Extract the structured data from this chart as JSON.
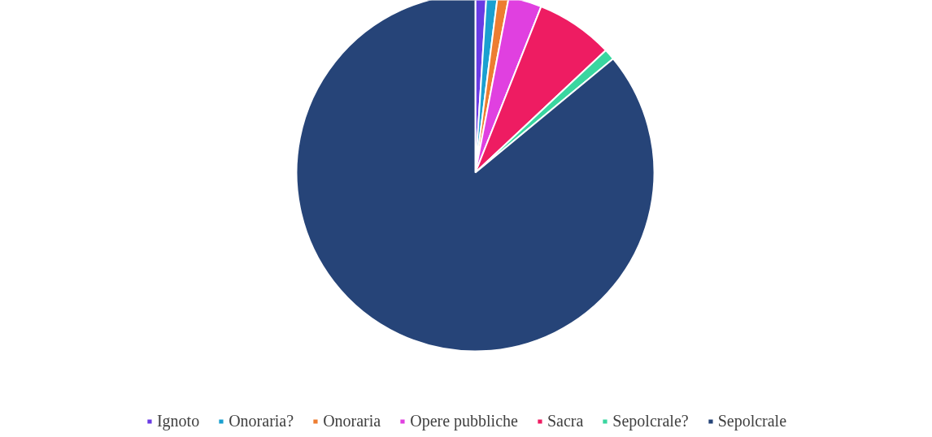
{
  "chart_data": {
    "type": "pie",
    "categories": [
      "Ignoto",
      "Onoraria?",
      "Onoraria",
      "Opere pubbliche",
      "Sacra",
      "Sepolcrale?",
      "Sepolcrale"
    ],
    "values": [
      1,
      1,
      1,
      3,
      7,
      1,
      86
    ],
    "colors": [
      "#6a3be4",
      "#1aa0d0",
      "#ed7d31",
      "#e040e0",
      "#ee1c62",
      "#3ad6a0",
      "#264478"
    ],
    "legend": "bottom"
  }
}
